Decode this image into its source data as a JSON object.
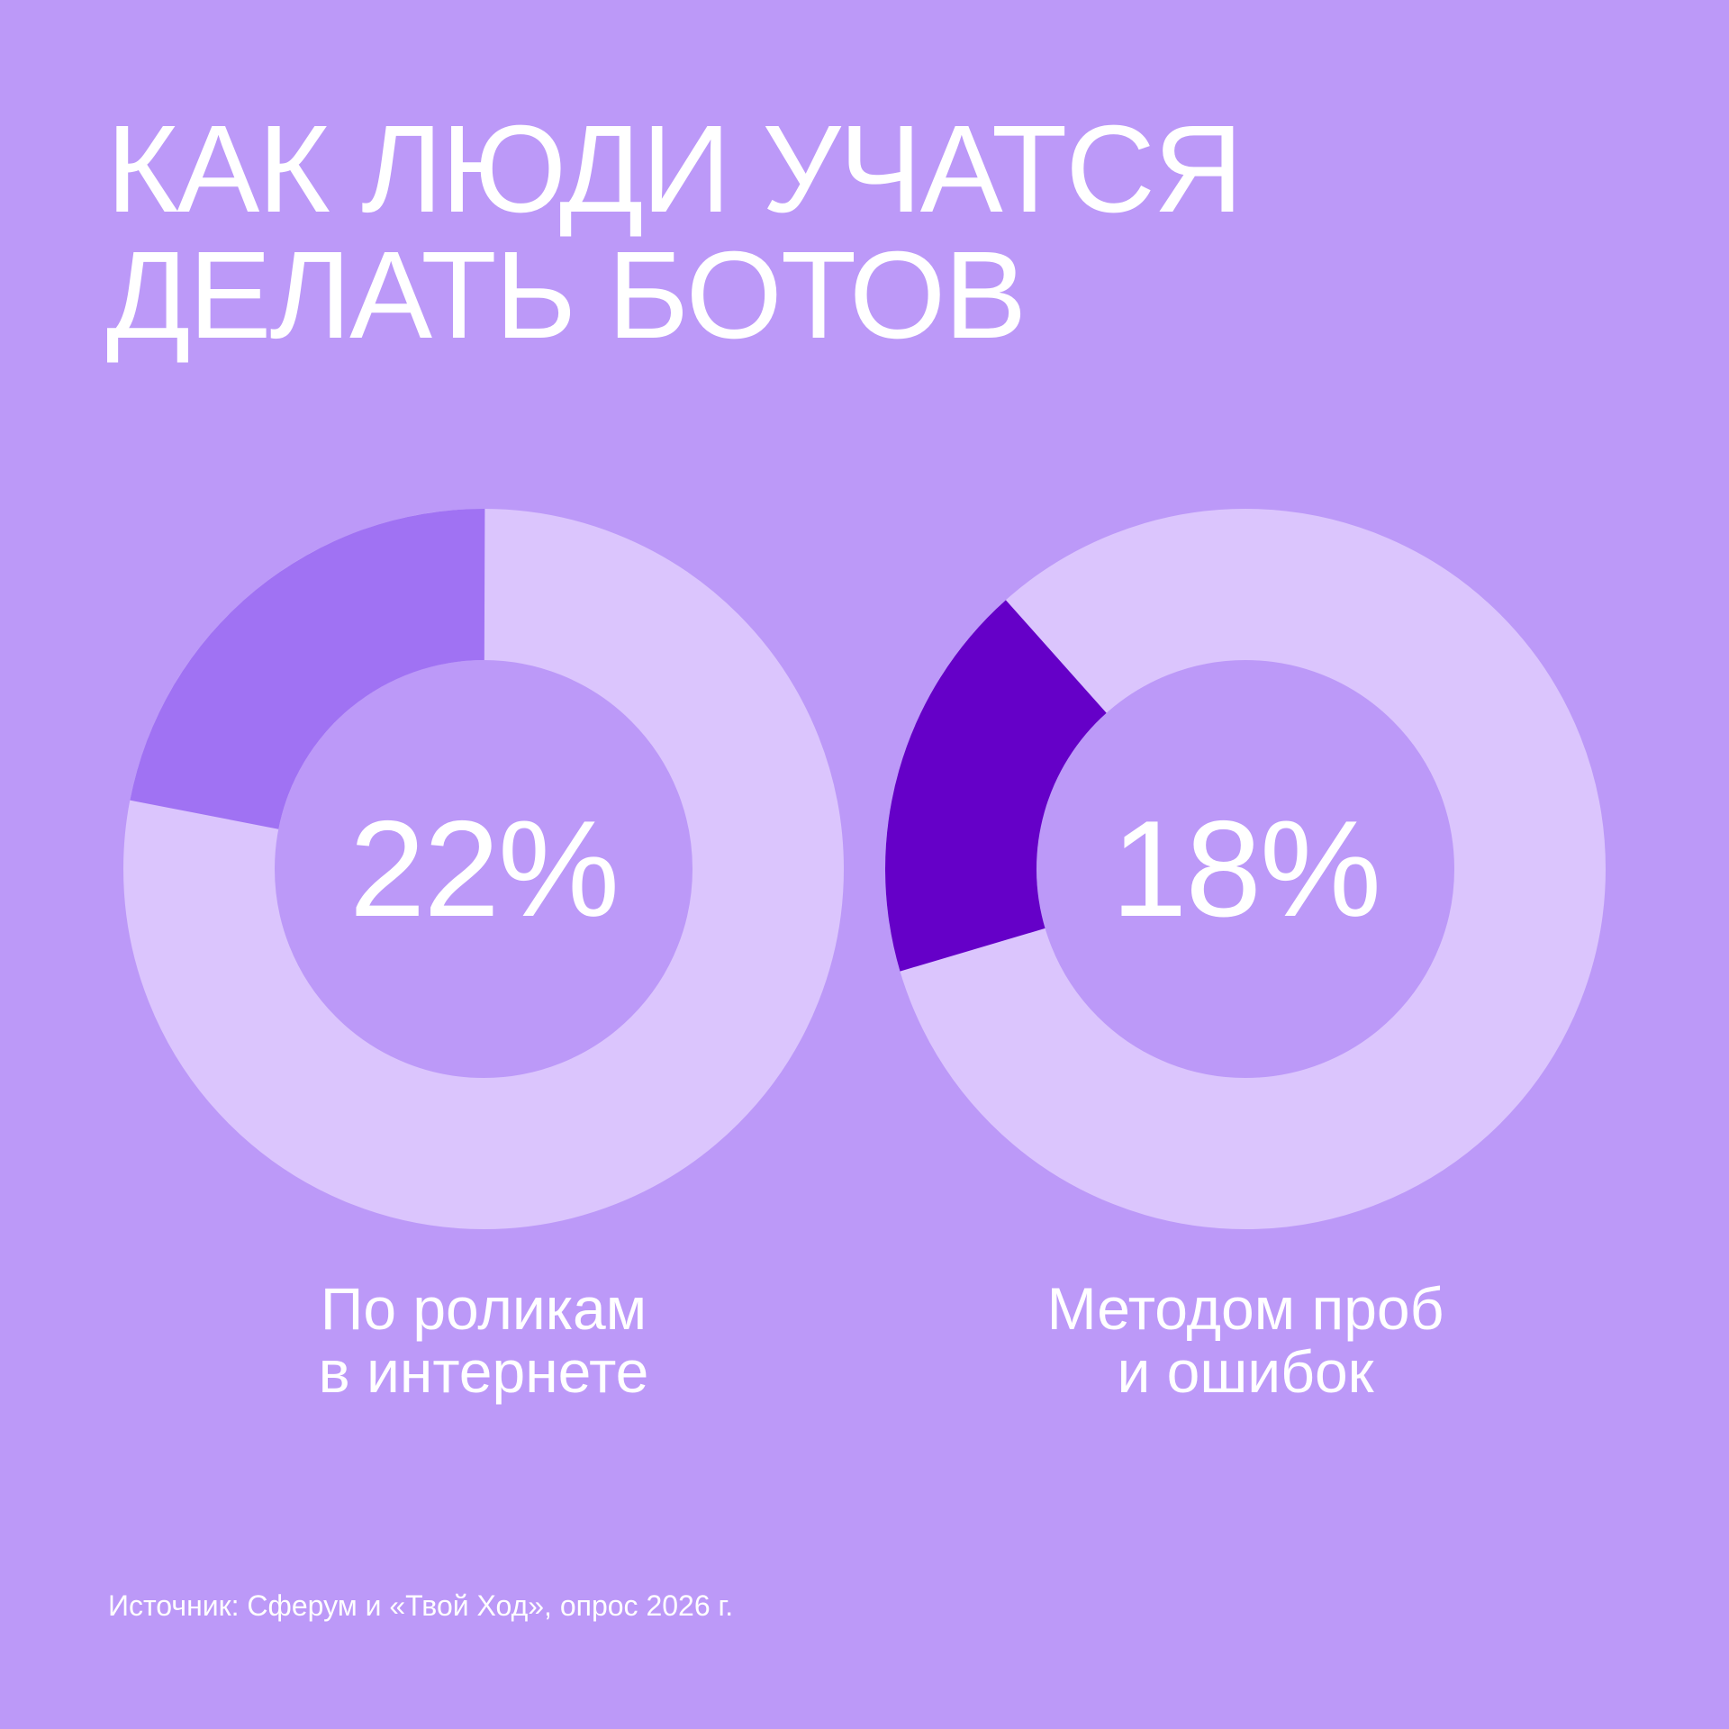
{
  "title": {
    "line1": "КАК ЛЮДИ УЧАТСЯ",
    "line2": "ДЕЛАТЬ БОТОВ"
  },
  "colors": {
    "background": "#bc99f8",
    "ring": "#dbc5fd",
    "highlight_1": "#a072f3",
    "highlight_2": "#6500c8",
    "text": "#ffffff"
  },
  "chart_data": [
    {
      "type": "pie",
      "style": "donut",
      "value": 22,
      "value_label": "22%",
      "caption": [
        "По роликам",
        "в интернете"
      ],
      "highlight_color": "#a072f3",
      "segment_position": "upper-left"
    },
    {
      "type": "pie",
      "style": "donut",
      "value": 18,
      "value_label": "18%",
      "caption": [
        "Методом проб",
        "и ошибок"
      ],
      "highlight_color": "#6500c8",
      "segment_position": "lower-left"
    }
  ],
  "source": "Источник: Сферум и «Твой Ход», опрос 2026 г."
}
